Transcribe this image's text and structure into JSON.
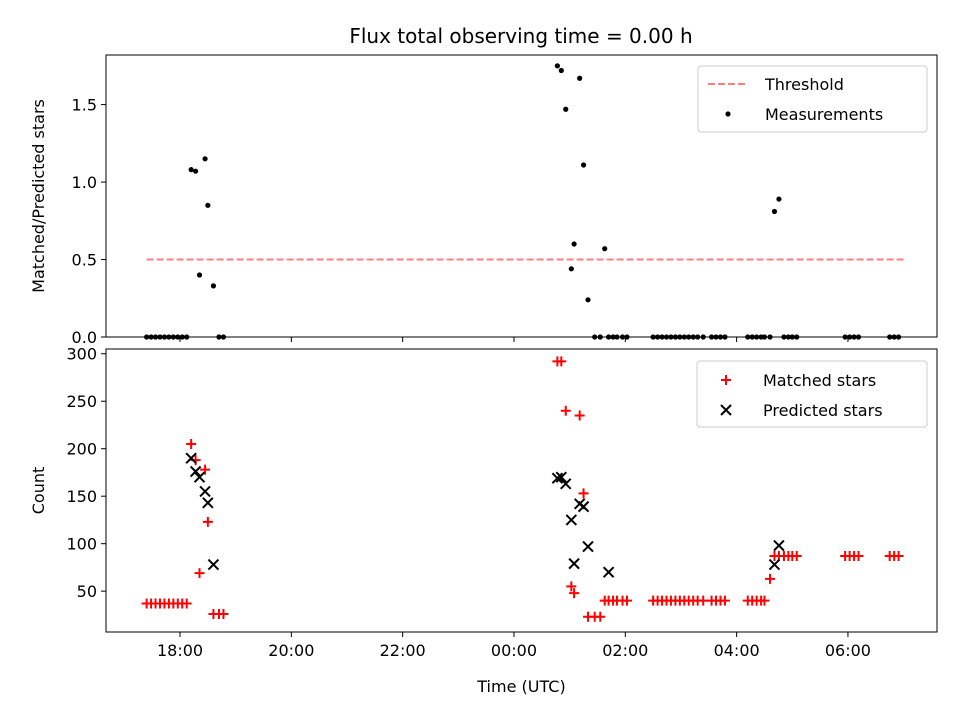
{
  "title": "Flux total observing time = 0.00 h",
  "chart_data": [
    {
      "type": "scatter",
      "ylabel": "Matched/Predicted stars",
      "ylim": [
        0,
        1.82
      ],
      "yticks": [
        0.0,
        0.5,
        1.0,
        1.5
      ],
      "legend": {
        "position": "top-right"
      },
      "threshold": {
        "name": "Threshold",
        "value": 0.5,
        "x_start": 17.4,
        "x_end": 31.05,
        "color": "#ff7f7f"
      },
      "series": [
        {
          "name": "Measurements",
          "color": "#000000",
          "x": [
            17.4,
            17.48,
            17.56,
            17.64,
            17.72,
            17.8,
            17.88,
            17.96,
            18.04,
            18.12,
            18.2,
            18.28,
            18.35,
            18.45,
            18.5,
            18.6,
            18.7,
            18.78,
            24.78,
            24.85,
            24.93,
            25.03,
            25.08,
            25.18,
            25.25,
            25.33,
            25.45,
            25.55,
            25.63,
            25.7,
            25.78,
            25.85,
            25.95,
            26.03,
            26.5,
            26.58,
            26.66,
            26.74,
            26.82,
            26.9,
            26.98,
            27.06,
            27.14,
            27.22,
            27.3,
            27.4,
            27.55,
            27.63,
            27.71,
            27.79,
            28.2,
            28.28,
            28.36,
            28.44,
            28.5,
            28.6,
            28.68,
            28.76,
            28.85,
            28.93,
            29.0,
            29.08,
            29.95,
            30.03,
            30.11,
            30.19,
            30.75,
            30.83,
            30.91
          ],
          "y": [
            0,
            0,
            0,
            0,
            0,
            0,
            0,
            0,
            0,
            0,
            1.08,
            1.07,
            0.4,
            1.15,
            0.85,
            0.33,
            0,
            0,
            1.75,
            1.72,
            1.47,
            0.44,
            0.6,
            1.67,
            1.11,
            0.24,
            0,
            0,
            0.57,
            0,
            0,
            0,
            0,
            0,
            0,
            0,
            0,
            0,
            0,
            0,
            0,
            0,
            0,
            0,
            0,
            0,
            0,
            0,
            0,
            0,
            0,
            0,
            0,
            0,
            0,
            0,
            0.81,
            0.89,
            0,
            0,
            0,
            0,
            0,
            0,
            0,
            0,
            0,
            0,
            0
          ]
        }
      ]
    },
    {
      "type": "scatter",
      "ylabel": "Count",
      "xlabel": "Time (UTC)",
      "xlim": [
        16.67,
        31.6
      ],
      "xticks": [
        18,
        20,
        22,
        24,
        26,
        28,
        30
      ],
      "xticklabels": [
        "18:00",
        "20:00",
        "22:00",
        "00:00",
        "02:00",
        "04:00",
        "06:00"
      ],
      "ylim": [
        7,
        305
      ],
      "yticks": [
        50,
        100,
        150,
        200,
        250,
        300
      ],
      "legend": {
        "position": "top-right"
      },
      "series": [
        {
          "name": "Matched stars",
          "marker": "plus",
          "color": "#ff0000",
          "x": [
            17.4,
            17.48,
            17.56,
            17.64,
            17.72,
            17.8,
            17.88,
            17.96,
            18.04,
            18.12,
            18.2,
            18.28,
            18.35,
            18.45,
            18.5,
            18.6,
            18.7,
            18.78,
            24.78,
            24.85,
            24.93,
            25.03,
            25.08,
            25.18,
            25.25,
            25.33,
            25.45,
            25.55,
            25.63,
            25.7,
            25.78,
            25.85,
            25.95,
            26.03,
            26.5,
            26.58,
            26.66,
            26.74,
            26.82,
            26.9,
            26.98,
            27.06,
            27.14,
            27.22,
            27.3,
            27.4,
            27.55,
            27.63,
            27.71,
            27.79,
            28.2,
            28.28,
            28.36,
            28.44,
            28.5,
            28.6,
            28.68,
            28.76,
            28.85,
            28.93,
            29.0,
            29.08,
            29.95,
            30.03,
            30.11,
            30.19,
            30.75,
            30.83,
            30.91
          ],
          "y": [
            37,
            37,
            37,
            37,
            37,
            37,
            37,
            37,
            37,
            37,
            205,
            188,
            69,
            178,
            123,
            26,
            26,
            26,
            292,
            292,
            240,
            55,
            48,
            235,
            153,
            23,
            23,
            23,
            40,
            40,
            40,
            40,
            40,
            40,
            40,
            40,
            40,
            40,
            40,
            40,
            40,
            40,
            40,
            40,
            40,
            40,
            40,
            40,
            40,
            40,
            40,
            40,
            40,
            40,
            40,
            63,
            87,
            87,
            87,
            87,
            87,
            87,
            87,
            87,
            87,
            87,
            87,
            87,
            87
          ]
        },
        {
          "name": "Predicted stars",
          "marker": "x",
          "color": "#000000",
          "x": [
            18.2,
            18.28,
            18.35,
            18.45,
            18.5,
            18.6,
            24.78,
            24.85,
            24.93,
            25.03,
            25.08,
            25.18,
            25.25,
            25.33,
            25.7,
            28.68,
            28.76
          ],
          "y": [
            190,
            176,
            170,
            155,
            143,
            78,
            169,
            170,
            163,
            125,
            79,
            142,
            139,
            97,
            70,
            78,
            98
          ]
        }
      ]
    }
  ]
}
